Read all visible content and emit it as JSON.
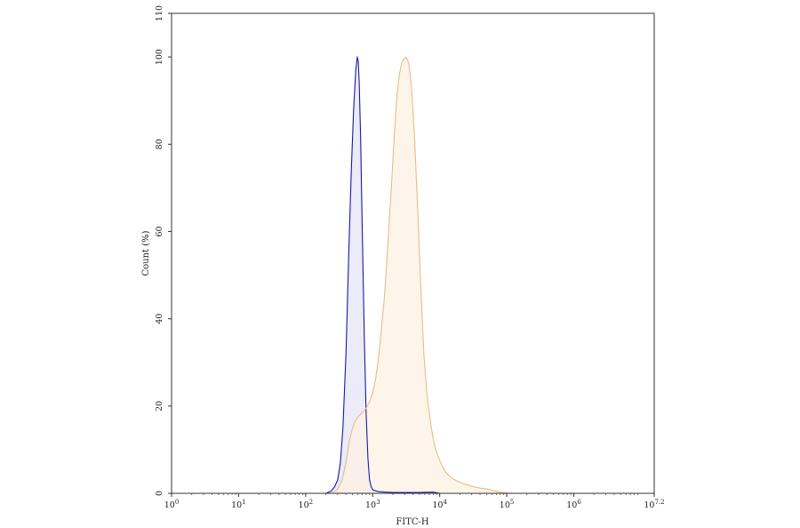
{
  "chart_data": {
    "type": "area",
    "title": "",
    "xlabel": "FITC-H",
    "ylabel": "Count  (%)",
    "x_scale": "log10",
    "xlim": [
      1,
      15848932
    ],
    "ylim": [
      0,
      110
    ],
    "grid": false,
    "legend": "none",
    "x_ticks": [
      {
        "value": 1,
        "base": "10",
        "exp": "0"
      },
      {
        "value": 10,
        "base": "10",
        "exp": "1"
      },
      {
        "value": 100,
        "base": "10",
        "exp": "2"
      },
      {
        "value": 1000,
        "base": "10",
        "exp": "3"
      },
      {
        "value": 10000,
        "base": "10",
        "exp": "4"
      },
      {
        "value": 100000,
        "base": "10",
        "exp": "5"
      },
      {
        "value": 1000000,
        "base": "10",
        "exp": "6"
      },
      {
        "value": 15848932,
        "base": "10",
        "exp": "7.2"
      }
    ],
    "y_ticks": [
      {
        "value": 0,
        "label": "0"
      },
      {
        "value": 20,
        "label": "20"
      },
      {
        "value": 40,
        "label": "40"
      },
      {
        "value": 60,
        "label": "60"
      },
      {
        "value": 80,
        "label": "80"
      },
      {
        "value": 100,
        "label": "100"
      },
      {
        "value": 110,
        "label": "110"
      }
    ],
    "series": [
      {
        "line_color": "#1a1a9e",
        "fill_color": "#e4e4f7",
        "x": [
          200,
          240,
          270,
          300,
          330,
          360,
          400,
          440,
          480,
          520,
          560,
          590,
          610,
          630,
          660,
          700,
          750,
          800,
          850,
          900,
          950,
          1000,
          1200,
          1500,
          2000,
          3000,
          5000,
          8000,
          10000
        ],
        "y": [
          0,
          0.5,
          1.5,
          3,
          7,
          15,
          32,
          55,
          74,
          88,
          97,
          100,
          99,
          94,
          82,
          60,
          36,
          18,
          8,
          3,
          1.5,
          0.8,
          0.4,
          0.3,
          0.2,
          0.2,
          0.2,
          0.3,
          0
        ]
      },
      {
        "line_color": "#e8bc86",
        "fill_color": "#fdf1e3",
        "x": [
          250,
          300,
          350,
          400,
          450,
          500,
          550,
          600,
          700,
          800,
          900,
          1000,
          1100,
          1200,
          1300,
          1500,
          1700,
          1900,
          2100,
          2300,
          2500,
          2700,
          2900,
          3100,
          3300,
          3500,
          3800,
          4200,
          4700,
          5200,
          5800,
          6500,
          7500,
          8500,
          10000,
          12000,
          15000,
          20000,
          25000,
          32000,
          40000,
          50000,
          60000,
          80000,
          100000,
          120000
        ],
        "y": [
          0,
          1,
          3,
          7,
          12,
          15,
          16.5,
          17.5,
          18.5,
          19.5,
          21,
          23,
          26,
          30,
          35,
          45,
          58,
          70,
          82,
          91,
          96,
          98.5,
          99.5,
          100,
          99.5,
          98,
          93,
          82,
          65,
          48,
          32,
          22,
          15,
          10.5,
          7.5,
          5,
          3.5,
          2.5,
          2,
          1.5,
          1.2,
          1,
          0.7,
          0.3,
          0.1,
          0
        ]
      }
    ]
  }
}
